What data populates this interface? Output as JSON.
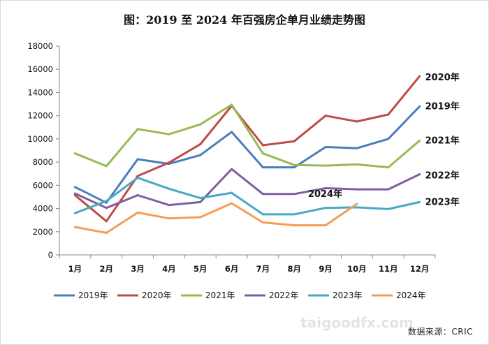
{
  "chart_data": {
    "type": "line",
    "title": "图：2019 至 2024 年百强房企单月业绩走势图",
    "categories": [
      "1月",
      "2月",
      "3月",
      "4月",
      "5月",
      "6月",
      "7月",
      "8月",
      "9月",
      "10月",
      "11月",
      "12月"
    ],
    "ylim": [
      0,
      18000
    ],
    "yticks": [
      0,
      2000,
      4000,
      6000,
      8000,
      10000,
      12000,
      14000,
      16000,
      18000
    ],
    "grid": false,
    "legend_position": "bottom",
    "series": [
      {
        "name": "2019年",
        "color": "#4a7ebb",
        "values": [
          5850,
          4500,
          8250,
          7850,
          8600,
          10600,
          7550,
          7550,
          9300,
          9200,
          10000,
          12800
        ]
      },
      {
        "name": "2020年",
        "color": "#be4b48",
        "values": [
          5150,
          2900,
          6800,
          7950,
          9550,
          12850,
          9450,
          9800,
          12000,
          11500,
          12100,
          15400
        ]
      },
      {
        "name": "2021年",
        "color": "#98b954",
        "values": [
          8750,
          7650,
          10850,
          10400,
          11250,
          12950,
          8750,
          7750,
          7700,
          7800,
          7550,
          9850
        ]
      },
      {
        "name": "2022年",
        "color": "#7d5fa0",
        "values": [
          5300,
          4050,
          5150,
          4300,
          4550,
          7400,
          5250,
          5250,
          5750,
          5650,
          5650,
          6950
        ]
      },
      {
        "name": "2023年",
        "color": "#46aac5",
        "values": [
          3600,
          4650,
          6650,
          5700,
          4900,
          5350,
          3500,
          3500,
          4050,
          4100,
          3950,
          4550
        ]
      },
      {
        "name": "2024年",
        "color": "#f59d56",
        "values": [
          2400,
          1900,
          3650,
          3150,
          3250,
          4450,
          2800,
          2550,
          2550,
          4400,
          null,
          null
        ]
      }
    ],
    "end_labels": [
      {
        "series": "2020年",
        "text": "2020年"
      },
      {
        "series": "2019年",
        "text": "2019年"
      },
      {
        "series": "2021年",
        "text": "2021年"
      },
      {
        "series": "2022年",
        "text": "2022年"
      },
      {
        "series": "2024年",
        "text": "2024年"
      },
      {
        "series": "2023年",
        "text": "2023年"
      }
    ]
  },
  "source": "数据来源：CRIC",
  "watermark": "taigoodfx.com"
}
